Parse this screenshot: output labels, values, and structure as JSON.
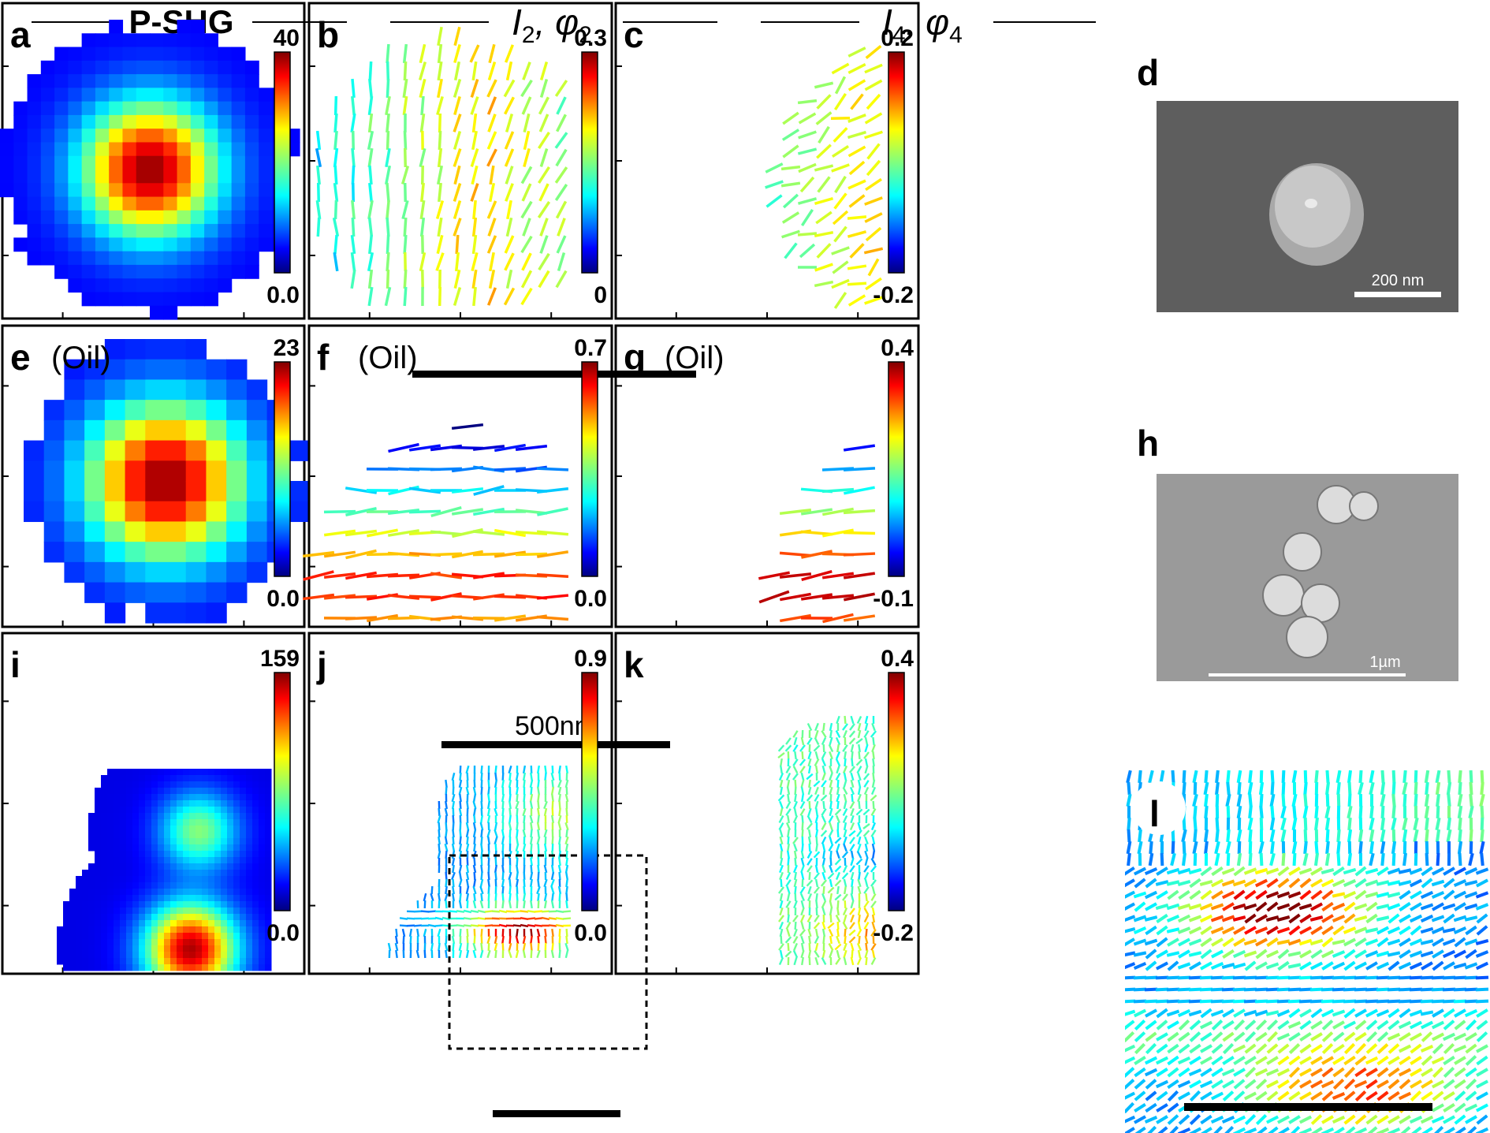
{
  "column_titles": {
    "col1": "P-SHG",
    "col2_I": "I",
    "col2_sub": "2",
    "col2_rest": ", φ",
    "col2_sub2": "2",
    "col3_I": "I",
    "col3_sub": "4",
    "col3_rest": ", φ",
    "col3_sub2": "4"
  },
  "panels": [
    {
      "id": "a",
      "label": "a",
      "kind": "heat",
      "cmax": "40",
      "cmin": "0.0",
      "oil": ""
    },
    {
      "id": "b",
      "label": "b",
      "kind": "vec",
      "cmax": "0.3",
      "cmin": "0",
      "oil": ""
    },
    {
      "id": "c",
      "label": "c",
      "kind": "vec",
      "cmax": "0.2",
      "cmin": "-0.2",
      "oil": ""
    },
    {
      "id": "d",
      "label": "d",
      "kind": "sem",
      "scale": "200 nm"
    },
    {
      "id": "e",
      "label": "e",
      "kind": "heat",
      "cmax": "23",
      "cmin": "0.0",
      "oil": "(Oil)"
    },
    {
      "id": "f",
      "label": "f",
      "kind": "vec",
      "cmax": "0.7",
      "cmin": "0.0",
      "oil": "(Oil)",
      "scale": "500nm"
    },
    {
      "id": "g",
      "label": "g",
      "kind": "vec",
      "cmax": "0.4",
      "cmin": "-0.1",
      "oil": "(Oil)"
    },
    {
      "id": "h",
      "label": "h",
      "kind": "sem",
      "scale": "1µm"
    },
    {
      "id": "i",
      "label": "i",
      "kind": "heat",
      "cmax": "159",
      "cmin": "0.0",
      "oil": ""
    },
    {
      "id": "j",
      "label": "j",
      "kind": "vec",
      "cmax": "0.9",
      "cmin": "0.0",
      "oil": ""
    },
    {
      "id": "k",
      "label": "k",
      "kind": "vec",
      "cmax": "0.4",
      "cmin": "-0.2",
      "oil": ""
    },
    {
      "id": "l",
      "label": "l",
      "kind": "vec-zoom"
    }
  ],
  "colors": {
    "jet": [
      "#00007f",
      "#0000ff",
      "#007fff",
      "#00ffff",
      "#7fff7f",
      "#ffff00",
      "#ff7f00",
      "#ff0000",
      "#7f0000"
    ],
    "sem_bg_d": "#5e5e5e",
    "sem_bg_h": "#9a9a9a"
  }
}
